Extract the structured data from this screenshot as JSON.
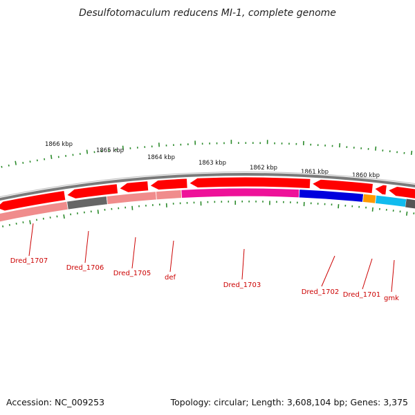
{
  "title": "Desulfotomaculum reducens MI-1, complete genome",
  "footer": {
    "accession": "Accession: NC_009253",
    "summary": "Topology: circular; Length: 3,608,104 bp; Genes: 3,375"
  },
  "scale": {
    "labels": [
      "1866 kbp",
      "1865 kbp",
      "1864 kbp",
      "1863 kbp",
      "1862 kbp",
      "1861 kbp",
      "1860 kbp"
    ]
  },
  "colors": {
    "tick": "#2a8a2a",
    "cds_arrow": "#ff0000",
    "backbone": "#888888",
    "label": "#cc0000"
  },
  "genes": [
    {
      "name": "Dred_1707",
      "color": "#f08c8c"
    },
    {
      "name": "Dred_1706",
      "color": "#666666"
    },
    {
      "name": "Dred_1705",
      "color": "#f08c8c"
    },
    {
      "name": "def",
      "color": "#f08c8c"
    },
    {
      "name": "Dred_1703",
      "color": "#ee1199"
    },
    {
      "name": "Dred_1702",
      "color": "#0000dd"
    },
    {
      "name": "Dred_1701",
      "color": "#ff9900"
    },
    {
      "name": "gmk",
      "color": "#11bbee"
    }
  ]
}
